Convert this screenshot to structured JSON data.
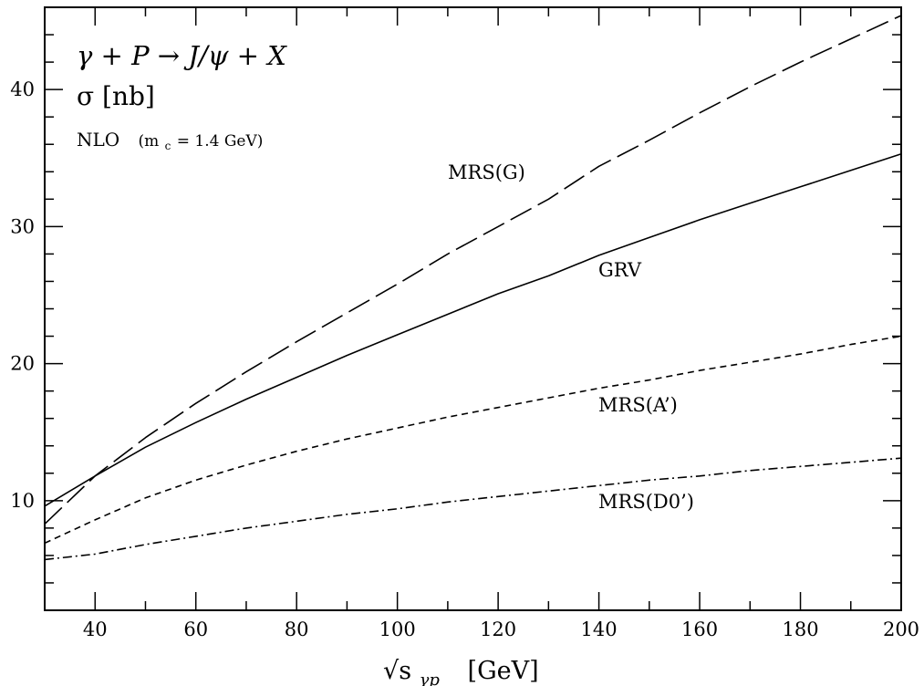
{
  "chart_data": {
    "type": "line",
    "annotations": {
      "process": "γ + P → J/ψ + X",
      "quantity": "σ [nb]",
      "order_prefix": "NLO",
      "order_detail": "(m",
      "order_sub": "c",
      "order_rest": " = 1.4 GeV)"
    },
    "xlabel_base": "√s",
    "xlabel_sub": "γp",
    "xlabel_unit": "[GeV]",
    "xlim": [
      30,
      200
    ],
    "ylim": [
      2,
      46
    ],
    "xticks": [
      40,
      60,
      80,
      100,
      120,
      140,
      160,
      180,
      200
    ],
    "yticks": [
      10,
      20,
      30,
      40
    ],
    "series": [
      {
        "name": "MRS(G)",
        "dash": "long-dash",
        "x": [
          30,
          40,
          50,
          60,
          70,
          80,
          90,
          100,
          110,
          120,
          130,
          140,
          150,
          160,
          170,
          180,
          190,
          200
        ],
        "y": [
          8.3,
          11.8,
          14.6,
          17.1,
          19.4,
          21.6,
          23.7,
          25.8,
          28.0,
          30.0,
          32.0,
          34.4,
          36.3,
          38.3,
          40.2,
          42.0,
          43.7,
          45.4
        ]
      },
      {
        "name": "GRV",
        "dash": "solid",
        "x": [
          30,
          40,
          50,
          60,
          70,
          80,
          90,
          100,
          110,
          120,
          130,
          140,
          150,
          160,
          170,
          180,
          190,
          200
        ],
        "y": [
          9.6,
          11.8,
          13.9,
          15.7,
          17.4,
          19.0,
          20.6,
          22.1,
          23.6,
          25.1,
          26.4,
          27.9,
          29.2,
          30.5,
          31.7,
          32.9,
          34.1,
          35.3
        ]
      },
      {
        "name": "MRS(A’)",
        "dash": "short-dash",
        "x": [
          30,
          40,
          50,
          60,
          70,
          80,
          90,
          100,
          110,
          120,
          130,
          140,
          150,
          160,
          170,
          180,
          190,
          200
        ],
        "y": [
          6.9,
          8.6,
          10.2,
          11.5,
          12.6,
          13.6,
          14.5,
          15.3,
          16.1,
          16.8,
          17.5,
          18.2,
          18.8,
          19.5,
          20.1,
          20.7,
          21.4,
          22.0
        ]
      },
      {
        "name": "MRS(D0’)",
        "dash": "dash-dot",
        "x": [
          30,
          40,
          50,
          60,
          70,
          80,
          90,
          100,
          110,
          120,
          130,
          140,
          150,
          160,
          170,
          180,
          190,
          200
        ],
        "y": [
          5.7,
          6.1,
          6.8,
          7.4,
          8.0,
          8.5,
          9.0,
          9.4,
          9.9,
          10.3,
          10.7,
          11.1,
          11.5,
          11.8,
          12.2,
          12.5,
          12.8,
          13.1
        ]
      }
    ]
  }
}
